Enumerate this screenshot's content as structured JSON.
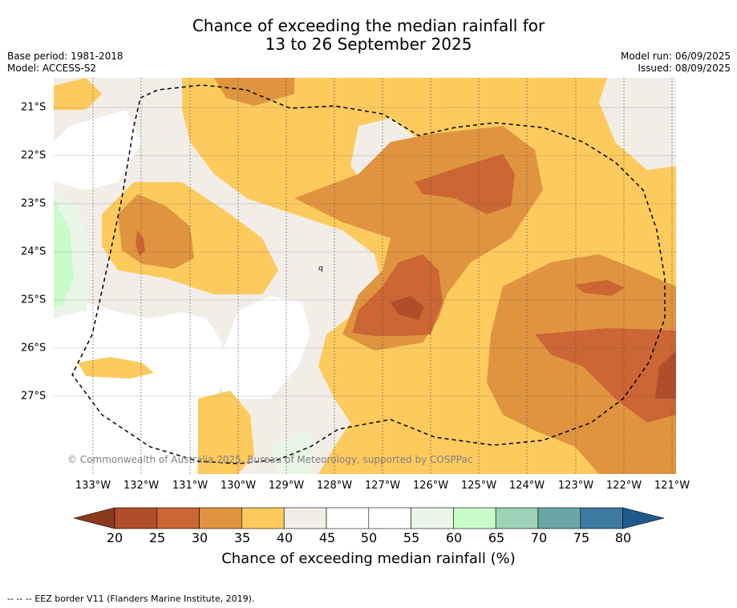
{
  "title": {
    "line1": "Chance of exceeding the median rainfall for",
    "line2": "13 to 26 September 2025"
  },
  "meta": {
    "base_period": "Base period: 1981-2018",
    "model": "Model: ACCESS-S2",
    "model_run": "Model run: 06/09/2025",
    "issued": "Issued: 08/09/2025"
  },
  "map": {
    "copyright": "© Commonwealth of Australia 2025, Bureau of Meteorology, supported by COSPPac",
    "longitude_labels": [
      "133°W",
      "132°W",
      "131°W",
      "130°W",
      "129°W",
      "128°W",
      "127°W",
      "126°W",
      "125°W",
      "124°W",
      "123°W",
      "122°W",
      "121°W"
    ],
    "latitude_labels": [
      "21°S",
      "22°S",
      "23°S",
      "24°S",
      "25°S",
      "26°S",
      "27°S"
    ]
  },
  "colorbar": {
    "ticks": [
      "20",
      "25",
      "30",
      "35",
      "40",
      "45",
      "50",
      "55",
      "60",
      "65",
      "70",
      "75",
      "80"
    ],
    "colors": [
      "#8b3a1e",
      "#b04e2a",
      "#cc6635",
      "#e0943f",
      "#fdca5e",
      "#f2ede7",
      "#ffffff",
      "#ffffff",
      "#e9f5e7",
      "#c8fcc8",
      "#9dd2b5",
      "#6ba6a6",
      "#3e7aa0",
      "#1f5a8c"
    ],
    "label": "Chance of exceeding median rainfall (%)"
  },
  "footnote": "-- -- -- EEZ border V11 (Flanders Marine Institute, 2019)."
}
